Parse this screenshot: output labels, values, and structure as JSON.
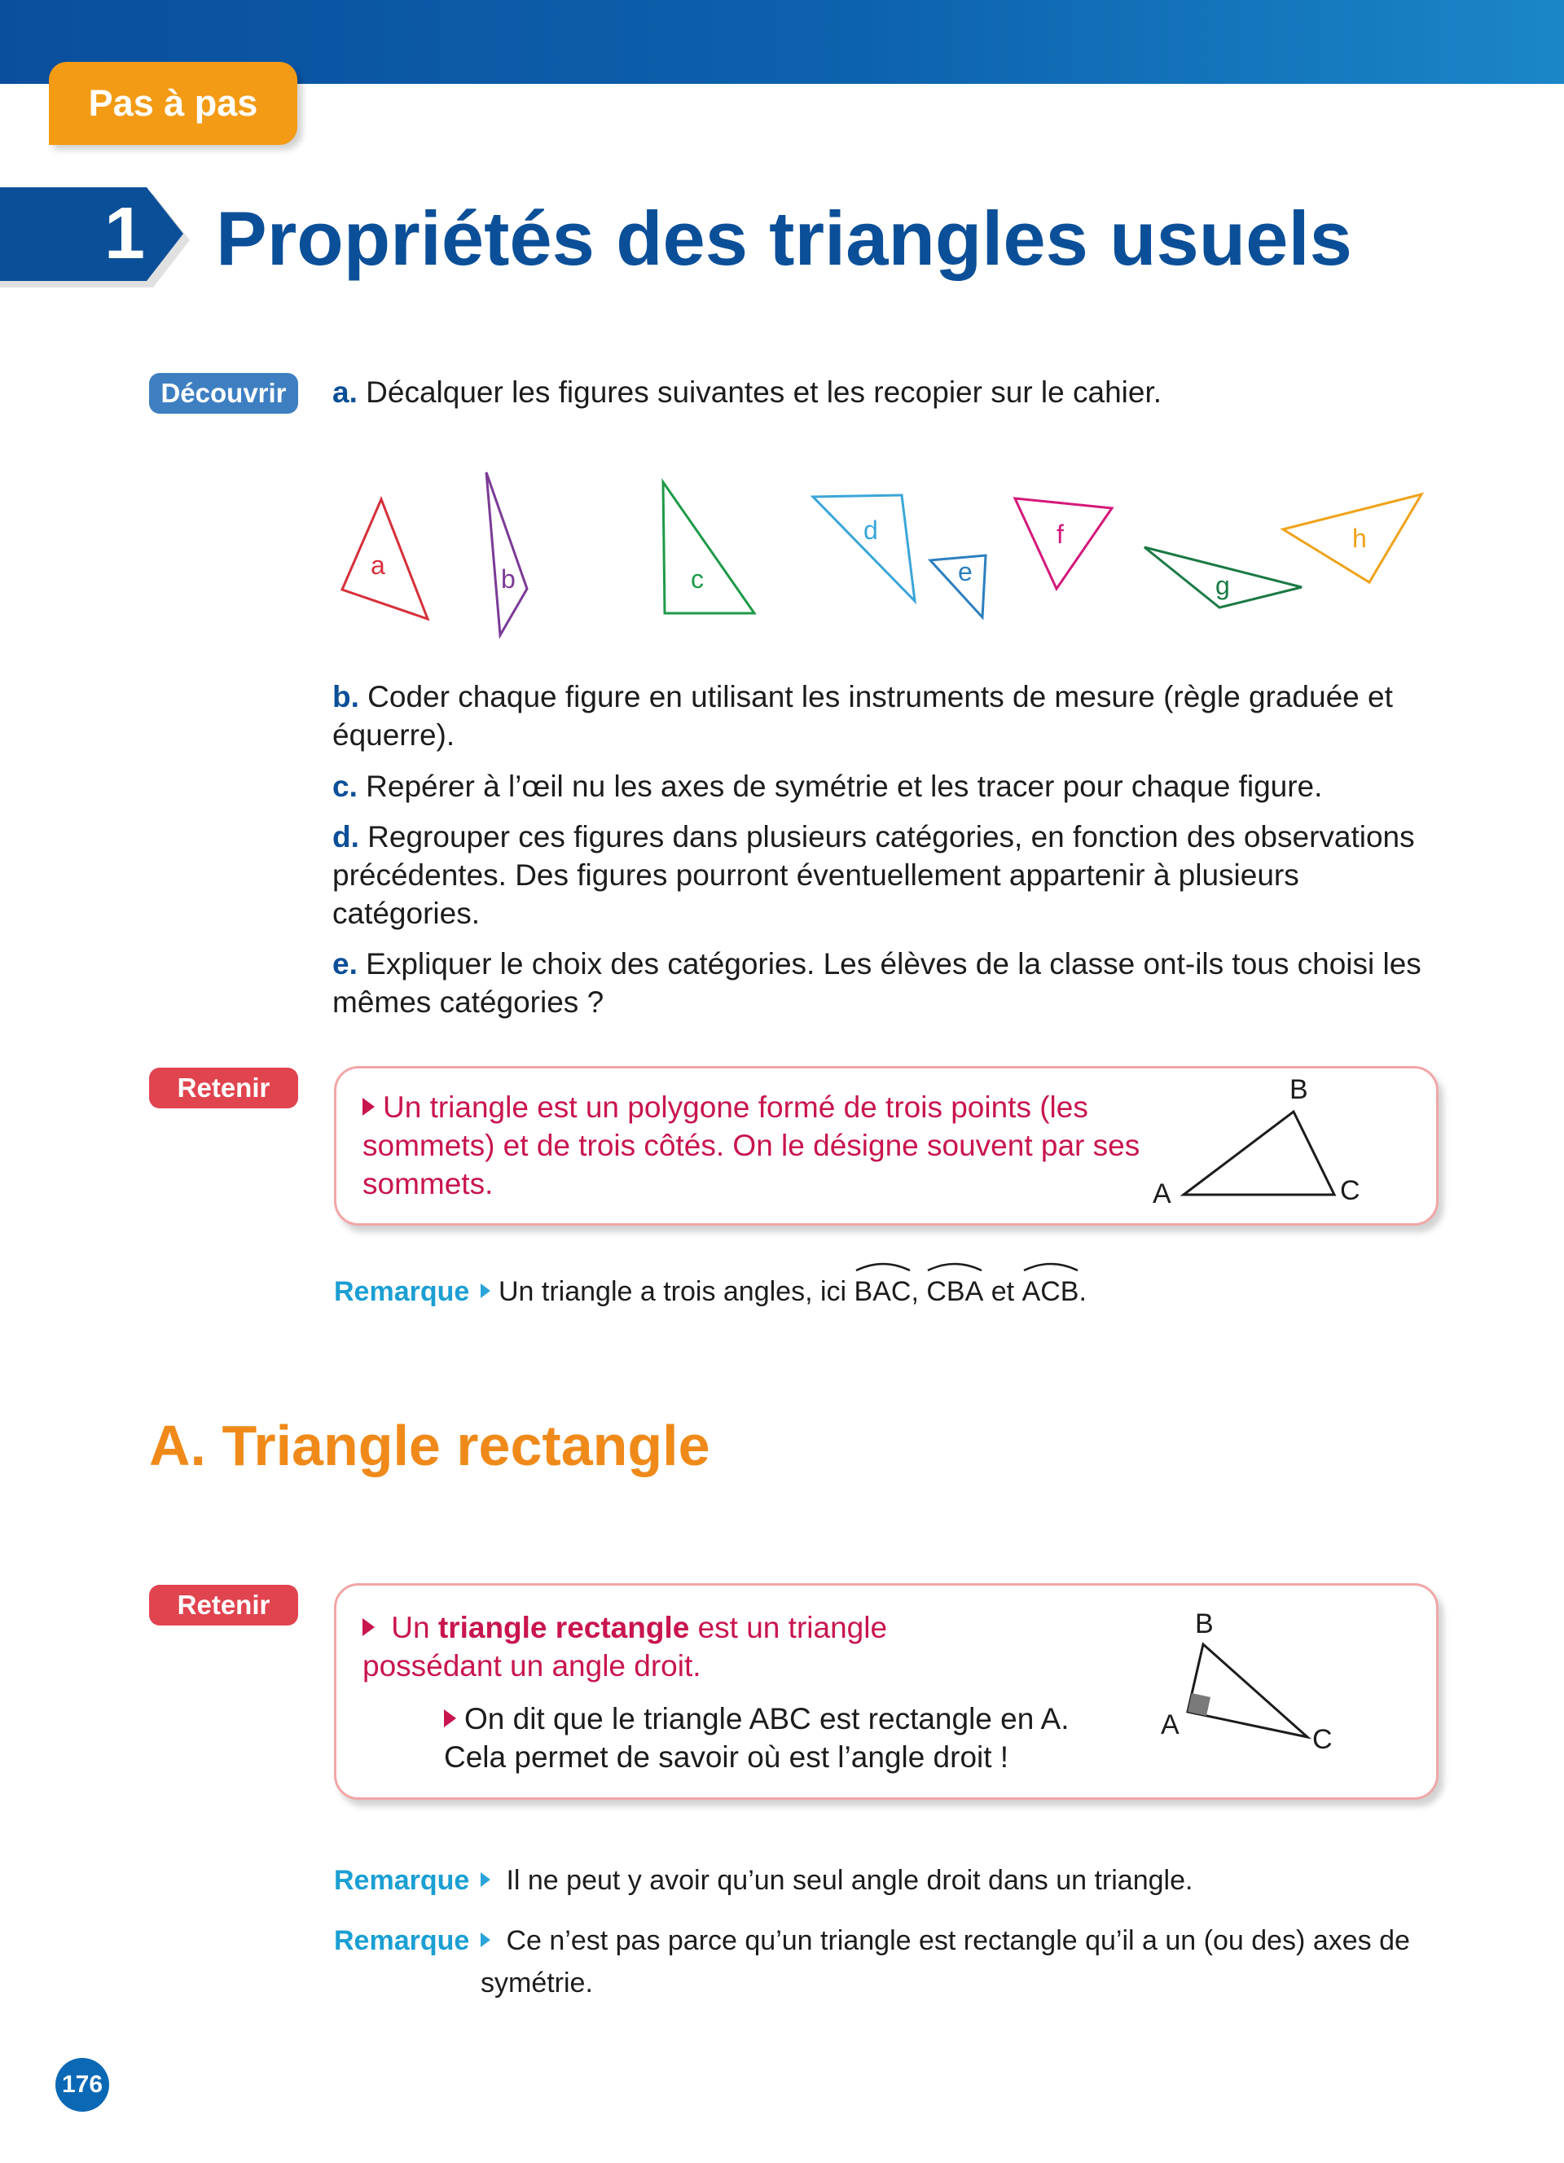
{
  "header": {
    "tab_label": "Pas à pas",
    "chapter_number": "1",
    "chapter_title": "Propriétés des triangles usuels"
  },
  "decouvrir": {
    "label": "Découvrir",
    "items": [
      {
        "letter": "a.",
        "text": "Décalquer les figures suivantes et les recopier sur le cahier."
      },
      {
        "letter": "b.",
        "text": "Coder chaque figure en utilisant les instruments de mesure (règle graduée et équerre)."
      },
      {
        "letter": "c.",
        "text": "Repérer à l’œil nu les axes de symétrie et les tracer pour chaque figure."
      },
      {
        "letter": "d.",
        "text": "Regrouper ces figures dans plusieurs catégories, en fonction des observations précédentes. Des figures pourront éventuellement appartenir à plusieurs catégories."
      },
      {
        "letter": "e.",
        "text": "Expliquer le choix des catégories. Les élèves de la classe ont-ils tous choisi les mêmes catégories ?"
      }
    ],
    "figure_labels": [
      "a",
      "b",
      "c",
      "d",
      "e",
      "f",
      "g",
      "h"
    ],
    "figure_colors": [
      "#d62f3a",
      "#7b3a96",
      "#1e9a48",
      "#3aa6d8",
      "#2c7fbf",
      "#d4187a",
      "#1a7a45",
      "#efa21a"
    ]
  },
  "retenir1": {
    "label": "Retenir",
    "text": "Un triangle est un polygone formé de trois points (les sommets) et de trois côtés. On le désigne souvent par ses sommets.",
    "vertices": [
      "A",
      "B",
      "C"
    ]
  },
  "remarque1": {
    "label": "Remarque",
    "prefix": "Un triangle a trois angles, ici",
    "angles": [
      "BAC",
      "CBA",
      "ACB"
    ],
    "sep1": ",",
    "sep2": "et",
    "end": "."
  },
  "section_a": {
    "title": "A. Triangle rectangle"
  },
  "retenir2": {
    "label": "Retenir",
    "line1_pre": "Un",
    "line1_bold": "triangle rectangle",
    "line1_post": "est un triangle possédant un angle droit.",
    "line2": "On dit que le triangle ABC est rectangle en A. Cela permet de savoir où est l’angle droit !",
    "vertices": [
      "A",
      "B",
      "C"
    ]
  },
  "remarque2": {
    "label": "Remarque",
    "text": "Il ne peut y avoir qu’un seul angle droit dans un triangle."
  },
  "remarque3": {
    "label": "Remarque",
    "text": "Ce n’est pas parce qu’un triangle est rectangle qu’il a un (ou des) axes de symétrie."
  },
  "page_number": "176"
}
